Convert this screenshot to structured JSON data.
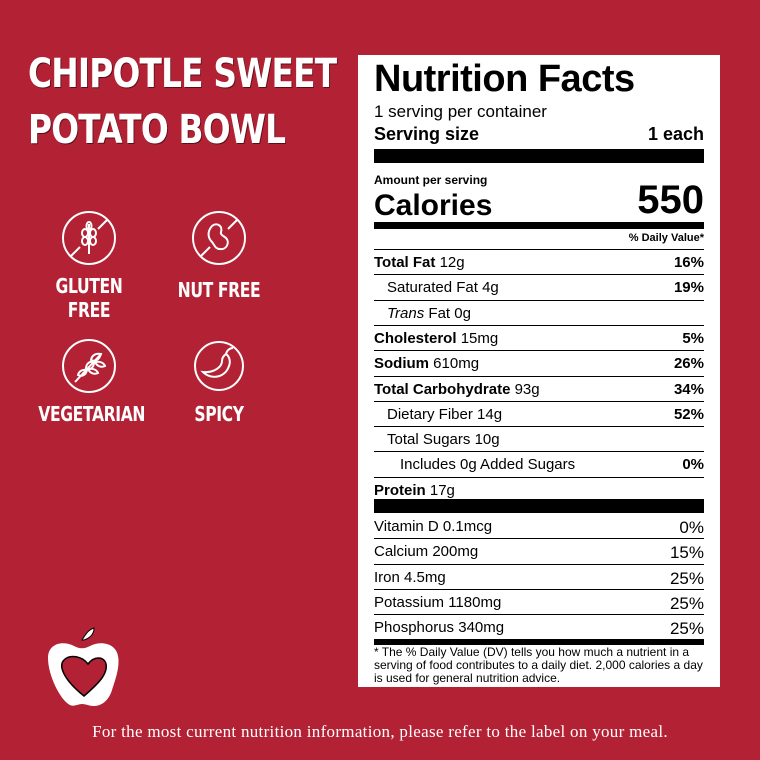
{
  "product_title": "CHIPOTLE SWEET POTATO BOWL",
  "badges": [
    {
      "icon": "gluten-free-icon",
      "label": "GLUTEN FREE"
    },
    {
      "icon": "nut-free-icon",
      "label": "NUT FREE"
    },
    {
      "icon": "vegetarian-icon",
      "label": "VEGETARIAN"
    },
    {
      "icon": "spicy-icon",
      "label": "SPICY"
    }
  ],
  "colors": {
    "background": "#b22234",
    "label": "#ffffff",
    "text": "#000000"
  },
  "nutrition": {
    "title": "Nutrition Facts",
    "servings": "1 serving per container",
    "serving_size_label": "Serving size",
    "serving_size_value": "1 each",
    "amount_per_serving": "Amount per serving",
    "calories_label": "Calories",
    "calories_value": "550",
    "dv_header": "% Daily Value*",
    "nutrients": [
      {
        "name": "Total Fat",
        "amount": "12g",
        "dv": "16%"
      },
      {
        "name": "Saturated Fat",
        "amount": "4g",
        "dv": "19%"
      },
      {
        "name": "Trans",
        "name2": "Fat 0g",
        "dv": ""
      },
      {
        "name": "Cholesterol",
        "amount": "15mg",
        "dv": "5%"
      },
      {
        "name": "Sodium",
        "amount": "610mg",
        "dv": "26%"
      },
      {
        "name": "Total Carbohydrate",
        "amount": "93g",
        "dv": "34%"
      },
      {
        "name": "Dietary Fiber",
        "amount": "14g",
        "dv": "52%"
      },
      {
        "name": "Total Sugars",
        "amount": "10g",
        "dv": ""
      },
      {
        "name": "Includes 0g Added Sugars",
        "amount": "",
        "dv": "0%"
      },
      {
        "name": "Protein",
        "amount": "17g",
        "dv": ""
      }
    ],
    "vitamins": [
      {
        "name": "Vitamin D 0.1mcg",
        "dv": "0%"
      },
      {
        "name": "Calcium 200mg",
        "dv": "15%"
      },
      {
        "name": "Iron 4.5mg",
        "dv": "25%"
      },
      {
        "name": "Potassium 1180mg",
        "dv": "25%"
      },
      {
        "name": "Phosphorus 340mg",
        "dv": "25%"
      }
    ],
    "footnote": "* The % Daily Value (DV) tells you how much a nutrient in a serving of food contributes to a daily diet. 2,000 calories a day is used for general nutrition advice."
  },
  "logo": "apple-heart-logo",
  "footer": "For the most current nutrition information, please refer to the label on your meal."
}
